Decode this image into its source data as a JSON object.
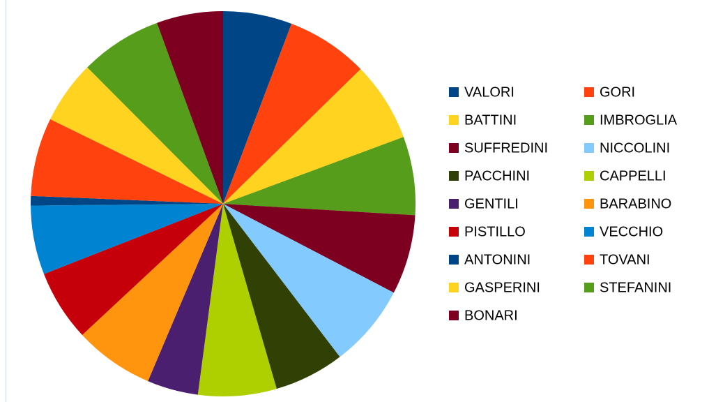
{
  "chart_data": {
    "type": "pie",
    "categories": [
      "VALORI",
      "GORI",
      "BATTINI",
      "IMBROGLIA",
      "SUFFREDINI",
      "NICCOLINI",
      "PACCHINI",
      "CAPPELLI",
      "GENTILI",
      "BARABINO",
      "PISTILLO",
      "VECCHIO",
      "ANTONINI",
      "TOVANI",
      "GASPERINI",
      "STEFANINI",
      "BONARI"
    ],
    "values": [
      5.8,
      6.9,
      6.7,
      6.6,
      6.7,
      7.0,
      5.9,
      6.6,
      4.3,
      6.7,
      6.0,
      5.8,
      0.8,
      6.6,
      5.3,
      6.9,
      5.6
    ],
    "colors": [
      "#004586",
      "#ff420e",
      "#ffd320",
      "#579d1c",
      "#7e0021",
      "#83caff",
      "#314004",
      "#aecf00",
      "#4b1f6f",
      "#ff950e",
      "#c5000b",
      "#0084d1",
      "#004586",
      "#ff420e",
      "#ffd320",
      "#579d1c",
      "#7e0021"
    ],
    "legend": "right"
  }
}
